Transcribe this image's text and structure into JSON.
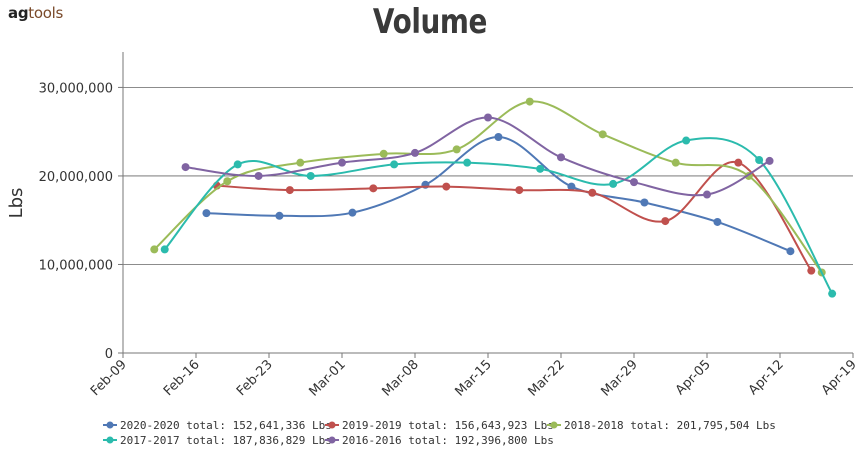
{
  "header": {
    "logo_ag": "ag",
    "logo_tools": "tools"
  },
  "chart_data": {
    "type": "line",
    "title": "Volume",
    "xlabel": "",
    "ylabel": "Lbs",
    "xlim": [
      "2020-02-09",
      "2020-04-19"
    ],
    "ylim": [
      0,
      34000000
    ],
    "x_ticks": [
      "Feb-09",
      "Feb-16",
      "Feb-23",
      "Mar-01",
      "Mar-08",
      "Mar-15",
      "Mar-22",
      "Mar-29",
      "Apr-05",
      "Apr-12",
      "Apr-19"
    ],
    "y_ticks": [
      "0",
      "10,000,000",
      "20,000,000",
      "30,000,000"
    ],
    "y_tick_values": [
      0,
      10000000,
      20000000,
      30000000
    ],
    "grid": "horizontal",
    "legend_position": "bottom",
    "series": [
      {
        "name": "2020-2020 total: 152,641,336 Lbs",
        "color": "#4f78b5",
        "points": [
          [
            "2020-02-17",
            15800000
          ],
          [
            "2020-02-24",
            15500000
          ],
          [
            "2020-03-02",
            15850000
          ],
          [
            "2020-03-09",
            19000000
          ],
          [
            "2020-03-16",
            24400000
          ],
          [
            "2020-03-23",
            18800000
          ],
          [
            "2020-03-30",
            17000000
          ],
          [
            "2020-04-06",
            14800000
          ],
          [
            "2020-04-13",
            11500000
          ]
        ]
      },
      {
        "name": "2019-2019 total: 156,643,923 Lbs",
        "color": "#c0504d",
        "points": [
          [
            "2020-02-18",
            18900000
          ],
          [
            "2020-02-25",
            18400000
          ],
          [
            "2020-03-04",
            18600000
          ],
          [
            "2020-03-11",
            18800000
          ],
          [
            "2020-03-18",
            18400000
          ],
          [
            "2020-03-25",
            18100000
          ],
          [
            "2020-04-01",
            14900000
          ],
          [
            "2020-04-08",
            21500000
          ],
          [
            "2020-04-15",
            9300000
          ]
        ]
      },
      {
        "name": "2018-2018 total: 201,795,504 Lbs",
        "color": "#9bbb59",
        "points": [
          [
            "2020-02-12",
            11700000
          ],
          [
            "2020-02-19",
            19400000
          ],
          [
            "2020-02-26",
            21500000
          ],
          [
            "2020-03-05",
            22500000
          ],
          [
            "2020-03-12",
            23000000
          ],
          [
            "2020-03-19",
            28400000
          ],
          [
            "2020-03-26",
            24700000
          ],
          [
            "2020-04-02",
            21500000
          ],
          [
            "2020-04-09",
            20000000
          ],
          [
            "2020-04-16",
            9100000
          ]
        ]
      },
      {
        "name": "2017-2017 total: 187,836,829 Lbs",
        "color": "#2bbbad",
        "points": [
          [
            "2020-02-13",
            11700000
          ],
          [
            "2020-02-20",
            21300000
          ],
          [
            "2020-02-27",
            20000000
          ],
          [
            "2020-03-06",
            21300000
          ],
          [
            "2020-03-13",
            21500000
          ],
          [
            "2020-03-20",
            20800000
          ],
          [
            "2020-03-27",
            19100000
          ],
          [
            "2020-04-03",
            24000000
          ],
          [
            "2020-04-10",
            21800000
          ],
          [
            "2020-04-17",
            6700000
          ]
        ]
      },
      {
        "name": "2016-2016 total: 192,396,800 Lbs",
        "color": "#8064a2",
        "points": [
          [
            "2020-02-15",
            21000000
          ],
          [
            "2020-02-22",
            20000000
          ],
          [
            "2020-03-01",
            21500000
          ],
          [
            "2020-03-08",
            22600000
          ],
          [
            "2020-03-15",
            26600000
          ],
          [
            "2020-03-22",
            22100000
          ],
          [
            "2020-03-29",
            19300000
          ],
          [
            "2020-04-05",
            17900000
          ],
          [
            "2020-04-11",
            21700000
          ]
        ]
      }
    ]
  }
}
